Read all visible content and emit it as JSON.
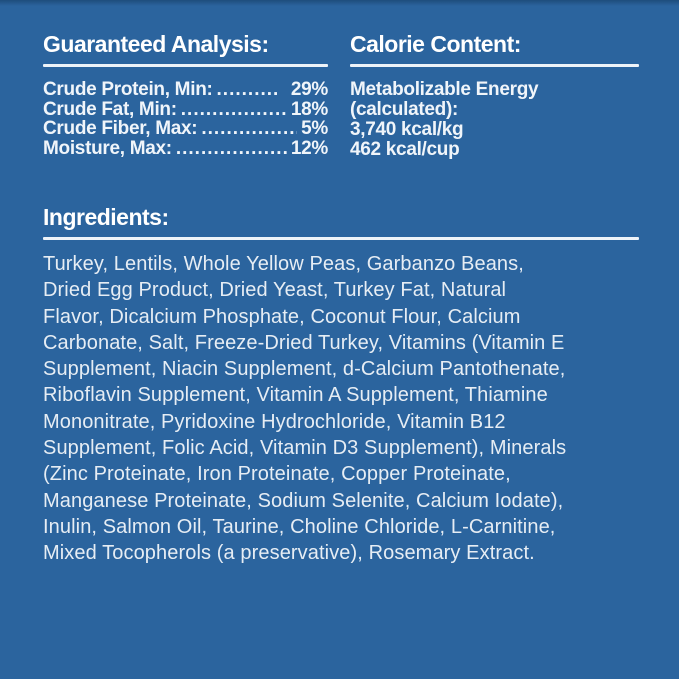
{
  "panel": {
    "background_color": "#2b649e",
    "top_edge_color": "#1e4d7c",
    "rule_color": "#eef3f8",
    "heading_color": "#ffffff",
    "body_text_color": "#e6edf4"
  },
  "guaranteed_analysis": {
    "heading": "Guaranteed Analysis:",
    "rows": [
      {
        "label": "Crude Protein, Min:",
        "leader": "..........",
        "value": "29%"
      },
      {
        "label": "Crude Fat, Min:",
        "leader": "...................",
        "value": "18%"
      },
      {
        "label": "Crude Fiber, Max:",
        "leader": "................",
        "value": "5%"
      },
      {
        "label": "Moisture, Max:",
        "leader": "...................",
        "value": "12%"
      }
    ]
  },
  "calorie_content": {
    "heading": "Calorie Content:",
    "lines": [
      "Metabolizable Energy",
      "(calculated):",
      "3,740 kcal/kg",
      "462 kcal/cup"
    ]
  },
  "ingredients": {
    "heading": "Ingredients:",
    "lines": [
      "Turkey, Lentils, Whole Yellow Peas, Garbanzo Beans,",
      "Dried Egg Product, Dried Yeast, Turkey Fat, Natural",
      "Flavor, Dicalcium Phosphate, Coconut Flour, Calcium",
      "Carbonate, Salt, Freeze-Dried Turkey, Vitamins (Vitamin E",
      "Supplement, Niacin Supplement, d-Calcium Pantothenate,",
      "Riboflavin Supplement, Vitamin A Supplement, Thiamine",
      "Mononitrate, Pyridoxine Hydrochloride, Vitamin B12",
      "Supplement, Folic Acid, Vitamin D3 Supplement), Minerals",
      "(Zinc Proteinate, Iron Proteinate, Copper Proteinate,",
      "Manganese Proteinate, Sodium Selenite, Calcium Iodate),",
      "Inulin, Salmon Oil, Taurine, Choline Chloride, L-Carnitine,",
      "Mixed Tocopherols (a preservative), Rosemary Extract."
    ]
  }
}
